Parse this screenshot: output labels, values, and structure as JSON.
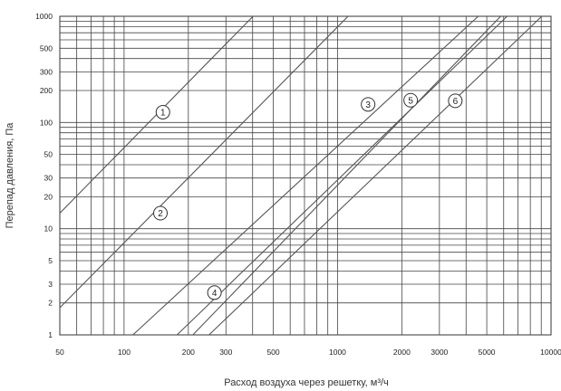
{
  "chart_data": {
    "type": "line",
    "title": "",
    "xlabel": "Расход воздуха через решетку, м³/ч",
    "ylabel": "Перепад давления, Па",
    "xscale": "log",
    "yscale": "log",
    "xlim": [
      50,
      10000
    ],
    "ylim": [
      1,
      1000
    ],
    "grid": true,
    "x_ticks": [
      "50",
      "100",
      "200",
      "300",
      "500",
      "1000",
      "2000",
      "3000",
      "5000",
      "10000"
    ],
    "y_ticks": [
      "1",
      "2",
      "3",
      "5",
      "10",
      "20",
      "30",
      "50",
      "100",
      "200",
      "300",
      "500",
      "1000"
    ],
    "series": [
      {
        "name": "1",
        "x": [
          50,
          402
        ],
        "y": [
          14,
          1000
        ]
      },
      {
        "name": "2",
        "x": [
          50,
          1120
        ],
        "y": [
          1.8,
          1000
        ]
      },
      {
        "name": "3",
        "x": [
          110,
          4560
        ],
        "y": [
          1,
          1000
        ]
      },
      {
        "name": "4",
        "x": [
          177,
          6230
        ],
        "y": [
          1,
          1000
        ]
      },
      {
        "name": "5",
        "x": [
          210,
          5810
        ],
        "y": [
          1,
          1000
        ]
      },
      {
        "name": "6",
        "x": [
          250,
          9050
        ],
        "y": [
          1,
          1000
        ]
      }
    ],
    "curve_labels": [
      {
        "text": "1",
        "x": 152,
        "y": 125
      },
      {
        "text": "2",
        "x": 148,
        "y": 14
      },
      {
        "text": "3",
        "x": 1390,
        "y": 148
      },
      {
        "text": "4",
        "x": 265,
        "y": 2.5
      },
      {
        "text": "5",
        "x": 2200,
        "y": 162
      },
      {
        "text": "6",
        "x": 3560,
        "y": 160
      }
    ]
  }
}
